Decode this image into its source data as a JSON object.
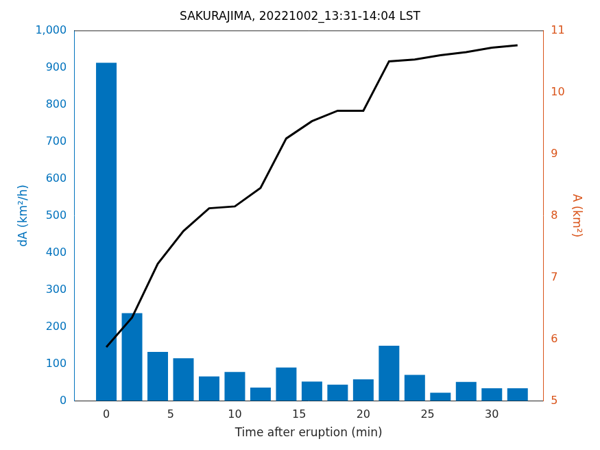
{
  "chart_data": {
    "type": "bar",
    "title": "SAKURAJIMA, 20221002_13:31-14:04 LST",
    "x_label": "Time after eruption (min)",
    "y_label": "dA (km²/h)",
    "y2_label": "A (km²)",
    "x": [
      0,
      2,
      4,
      6,
      8,
      10,
      12,
      14,
      16,
      18,
      20,
      22,
      24,
      26,
      28,
      30,
      32
    ],
    "series": [
      {
        "type": "bar",
        "color": "#0072bd",
        "values": [
          913,
          237,
          132,
          115,
          66,
          78,
          36,
          90,
          52,
          44,
          58,
          149,
          70,
          22,
          51,
          34,
          34
        ]
      },
      {
        "type": "line",
        "color": "#000000",
        "axis": "y2",
        "marker": "none",
        "line_style": "solid",
        "values": [
          5.87,
          6.35,
          7.22,
          7.75,
          8.12,
          8.15,
          8.45,
          9.25,
          9.53,
          9.7,
          9.7,
          10.5,
          10.53,
          10.6,
          10.65,
          10.72,
          10.76
        ]
      }
    ],
    "xlim": [
      -2.5,
      34
    ],
    "xticks": [
      0,
      5,
      10,
      15,
      20,
      25,
      30
    ],
    "ylim": [
      0,
      1000
    ],
    "yticks": [
      0,
      100,
      200,
      300,
      400,
      500,
      600,
      700,
      800,
      900,
      1000
    ],
    "y2lim": [
      5,
      11
    ],
    "y2ticks": [
      5,
      6,
      7,
      8,
      9,
      10,
      11
    ],
    "grid": false,
    "legend": "none"
  }
}
